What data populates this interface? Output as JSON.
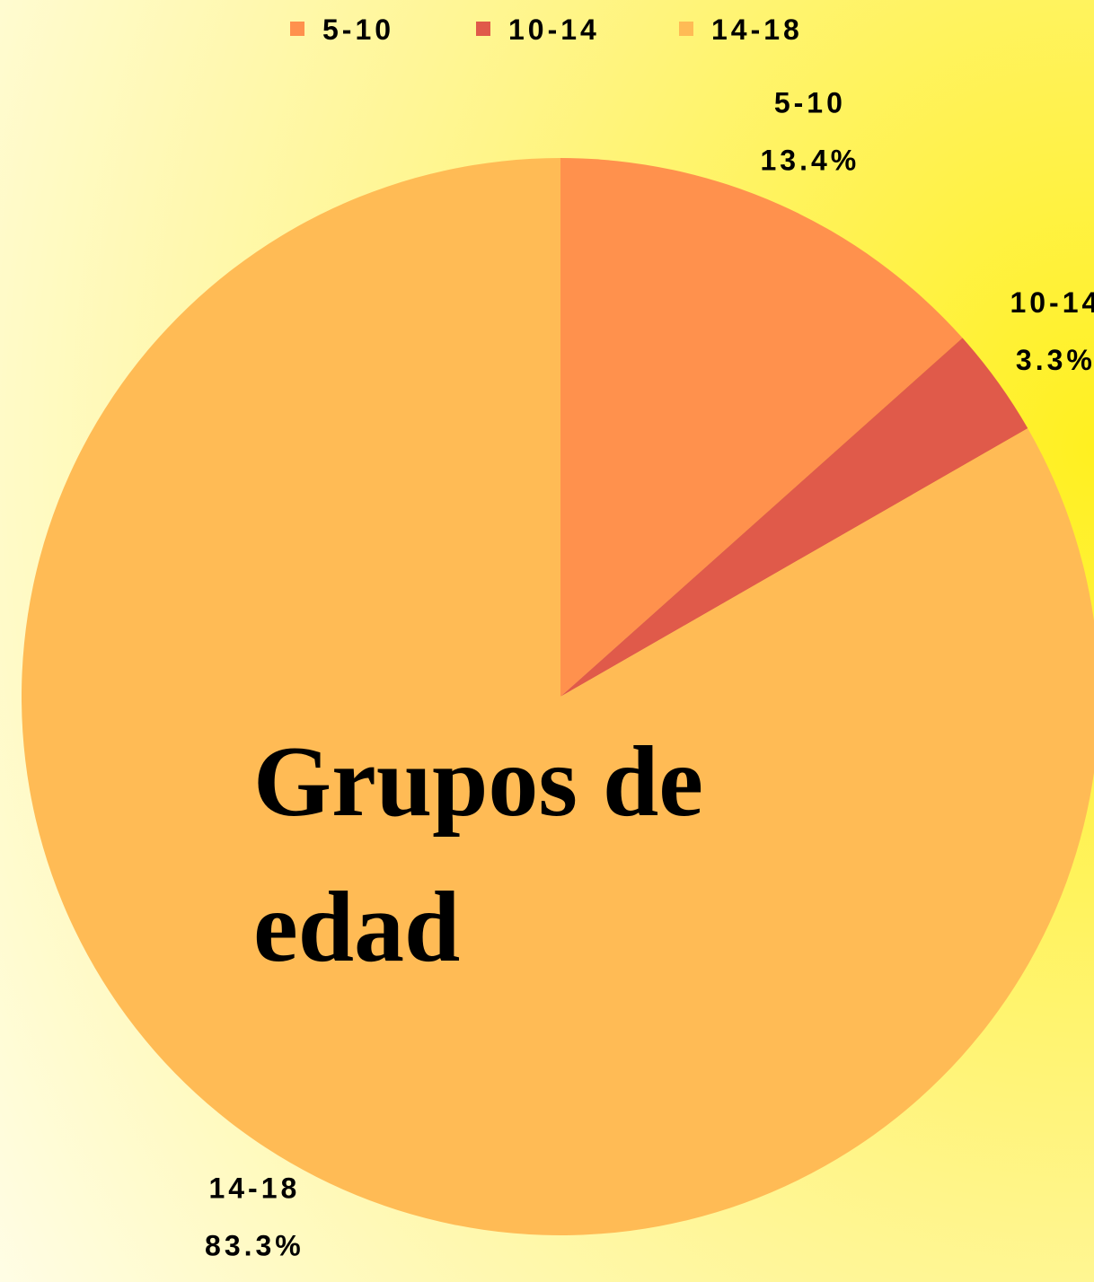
{
  "chart_data": {
    "type": "pie",
    "title": "Grupos de edad",
    "categories": [
      "5-10",
      "10-14",
      "14-18"
    ],
    "values": [
      13.4,
      3.3,
      83.3
    ],
    "value_labels": [
      "13.4%",
      "3.3%",
      "83.3%"
    ],
    "colors": [
      "#ff914d",
      "#e05a4a",
      "#ffbb55"
    ],
    "legend": "top"
  }
}
